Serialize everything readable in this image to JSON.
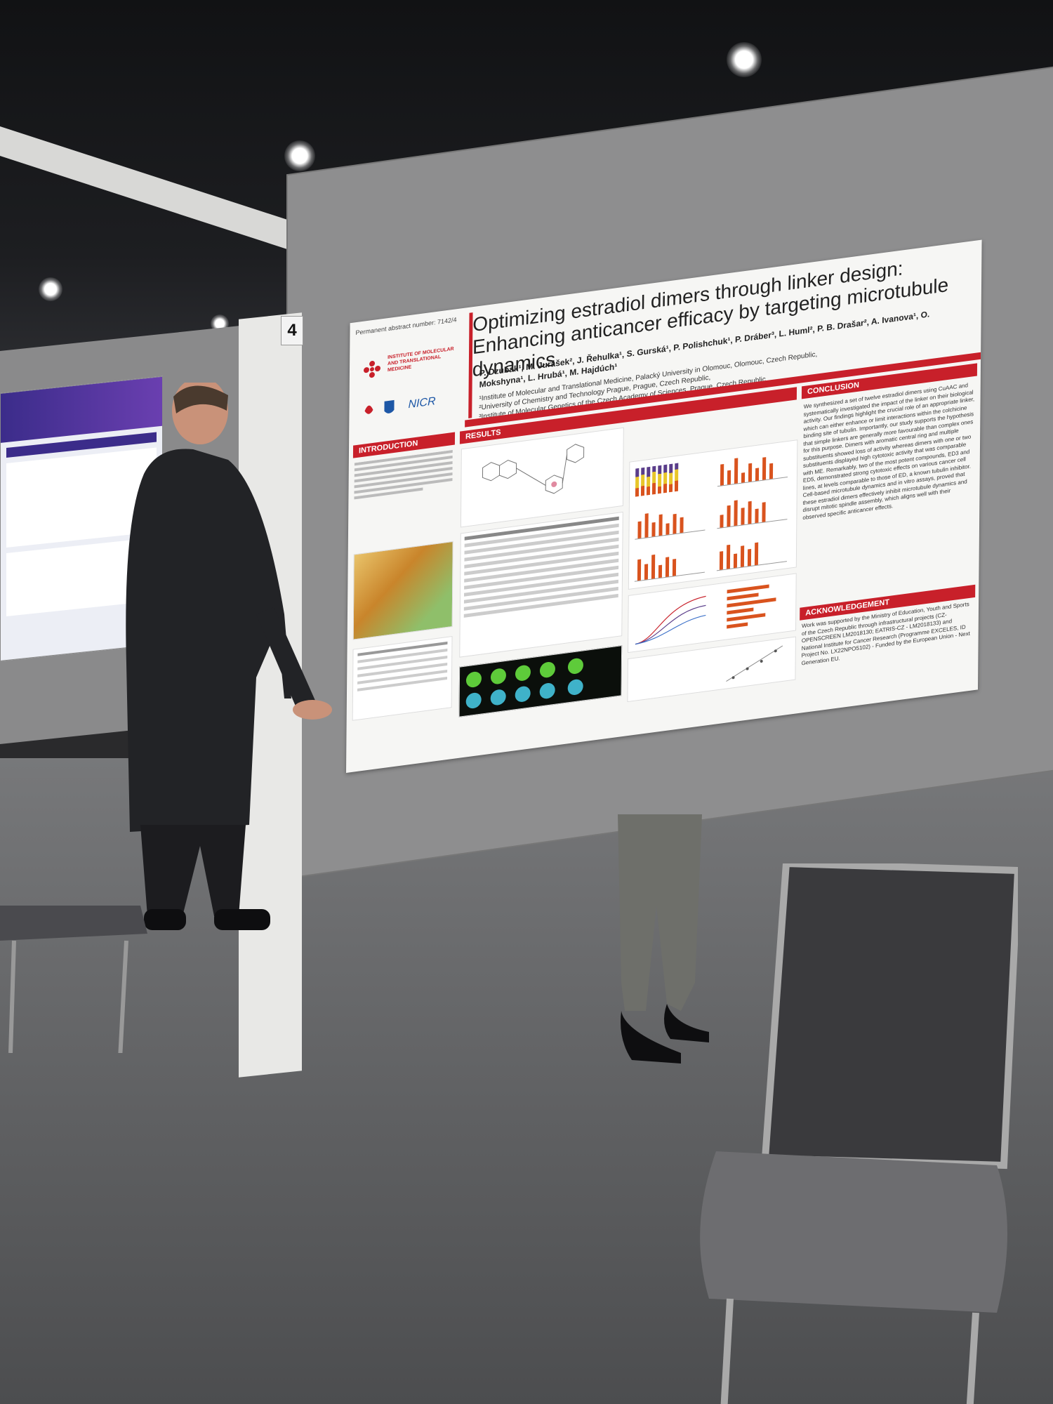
{
  "booth_number": "4",
  "poster": {
    "abstract_number": "Permanent abstract number: 7142/4",
    "title": "Optimizing estradiol dimers through linker design: Enhancing anticancer efficacy by targeting microtubule dynamics",
    "authors": "P. Dzubak¹, M. Jurášek², J. Řehulka¹, S. Gurská¹, P. Polishchuk¹, P. Dráber³, L. Huml², P. B. Drašar², A. Ivanova¹, O. Mokshyna¹, L. Hrubá¹, M. Hajdúch¹",
    "affiliations": [
      "¹Institute of Molecular and Translational Medicine, Palacký University in Olomouc, Olomouc, Czech Republic,",
      "²University of Chemistry and Technology Prague, Prague, Czech Republic,",
      "³Institute of Molecular Genetics of the Czech Academy of Sciences, Prague, Czech Republic"
    ],
    "logo_text": "INSTITUTE OF MOLECULAR AND TRANSLATIONAL MEDICINE",
    "nicr_text": "NICR",
    "sections": {
      "introduction": "INTRODUCTION",
      "results": "RESULTS",
      "conclusion": "CONCLUSION",
      "acknowledgement": "ACKNOWLEDGEMENT"
    },
    "conclusion_text": "We synthesized a set of twelve estradiol dimers using CuAAC and systematically investigated the impact of the linker on their biological activity. Our findings highlight the crucial role of an appropriate linker, which can either enhance or limit interactions within the colchicine binding site of tubulin. Importantly, our study supports the hypothesis that simple linkers are generally more favourable than complex ones for this purpose. Dimers with aromatic central ring and multiple substituents showed loss of activity whereas dimers with one or two substituents displayed high cytotoxic activity that was comparable with ME. Remarkably, two of the most potent compounds, ED3 and ED5, demonstrated strong cytotoxic effects on various cancer cell lines, at levels comparable to those of ED, a known tubulin inhibitor. Cell-based microtubule dynamics and in vitro assays, proved that these estradiol dimers effectively inhibit microtubule dynamics and disrupt mitotic spindle assembly, which aligns well with their observed specific anticancer effects.",
    "acknowledgement_text": "Work was supported by the Ministry of Education, Youth and Sports of the Czech Republic through infrastructural projects (CZ-OPENSCREEN LM2018130; EATRIS-CZ - LM2018133) and National Institute for Cancer Research (Programme EXCELES, ID Project No. LX22NPO5102) - Funded by the European Union - Next Generation EU."
  },
  "colors": {
    "accent_red": "#c8202a",
    "bar_orange": "#d9531e",
    "bar_yellow": "#e8c62a",
    "bar_purple": "#5a3d8a"
  }
}
